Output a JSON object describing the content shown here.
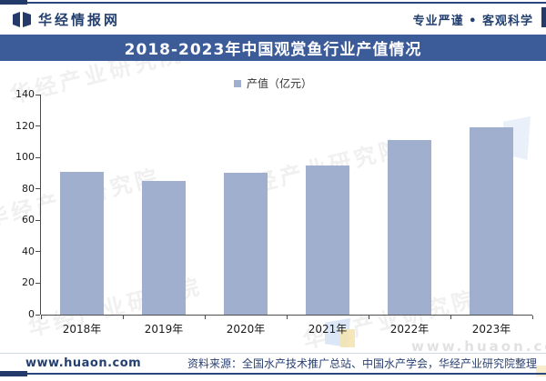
{
  "header": {
    "brand": "华经情报网",
    "slogan": "专业严谨 • 客观科学"
  },
  "banner": {
    "title": "2018-2023年中国观赏鱼行业产值情况"
  },
  "legend": {
    "label": "产值（亿元）"
  },
  "chart_data": {
    "type": "bar",
    "title": "2018-2023年中国观赏鱼行业产值情况",
    "categories": [
      "2018年",
      "2019年",
      "2020年",
      "2021年",
      "2022年",
      "2023年"
    ],
    "values": [
      91,
      85,
      90,
      95,
      111,
      119
    ],
    "series_name": "产值（亿元）",
    "xlabel": "",
    "ylabel": "",
    "ylim": [
      0,
      140
    ],
    "ytick_step": 20,
    "yticks": [
      0,
      20,
      40,
      60,
      80,
      100,
      120,
      140
    ],
    "grid": false,
    "legend_position": "top-center",
    "bar_color": "#a0afce"
  },
  "watermarks": {
    "diagonal_text": "华经产业研究院",
    "url_text": "www.huaon.com"
  },
  "footer": {
    "site": "www.huaon.com",
    "source": "资料来源：全国水产技术推广总站、中国水产学会，华经产业研究院整理"
  },
  "colors": {
    "banner": "#3b5b99",
    "navy_text": "#24406f",
    "line": "#2c477f",
    "bar": "#a0afce",
    "axis": "#4d4d4d"
  }
}
